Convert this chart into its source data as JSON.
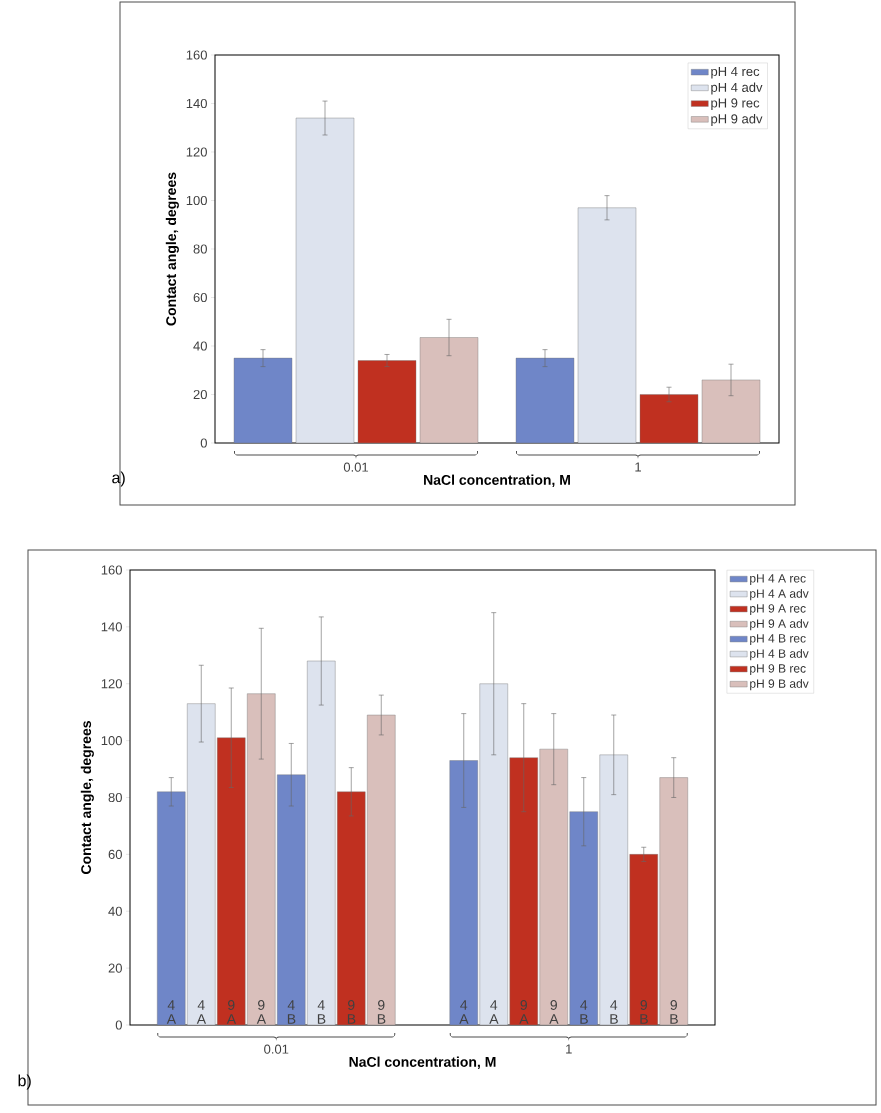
{
  "chart_data": [
    {
      "type": "bar",
      "categories": [
        "0.01",
        "1"
      ],
      "xlabel": "NaCl concentration, M",
      "ylabel": "Contact angle, degrees",
      "ylim": [
        0,
        160
      ],
      "yticks": [
        0,
        20,
        40,
        60,
        80,
        100,
        120,
        140,
        160
      ],
      "legend": "top right",
      "annotations": [
        "a)"
      ],
      "series": [
        {
          "name": "pH 4 rec",
          "color": "#6f86c8",
          "values": [
            35,
            35
          ],
          "errors": [
            3.5,
            3.5
          ]
        },
        {
          "name": "pH 4 adv",
          "color": "#dde3ee",
          "values": [
            134,
            97
          ],
          "errors": [
            7,
            5
          ]
        },
        {
          "name": "pH 9 rec",
          "color": "#c03020",
          "values": [
            34,
            20
          ],
          "errors": [
            2.5,
            3
          ]
        },
        {
          "name": "pH 9 adv",
          "color": "#d9bfbb",
          "values": [
            43.5,
            26
          ],
          "errors": [
            7.5,
            6.5
          ]
        }
      ]
    },
    {
      "type": "bar",
      "categories": [
        "0.01",
        "1"
      ],
      "xlabel": "NaCl concentration, M",
      "ylabel": "Contact angle, degrees",
      "ylim": [
        0,
        160
      ],
      "yticks": [
        0,
        20,
        40,
        60,
        80,
        100,
        120,
        140,
        160
      ],
      "legend": "right",
      "annotations": [
        "b)",
        "4 A",
        "4 A",
        "9 A",
        "9 A",
        "4 B",
        "4 B",
        "9 B",
        "9 B",
        "4 A",
        "4 A",
        "9 A",
        "9 A",
        "4 B",
        "4 B",
        "9 B",
        "9 B"
      ],
      "series": [
        {
          "name": "pH 4 A rec",
          "color": "#6f86c8",
          "values": [
            82,
            93
          ],
          "errors": [
            5,
            16.5
          ]
        },
        {
          "name": "pH 4 A adv",
          "color": "#dde3ee",
          "values": [
            113,
            120
          ],
          "errors": [
            13.5,
            25
          ]
        },
        {
          "name": "pH 9 A rec",
          "color": "#c03020",
          "values": [
            101,
            94
          ],
          "errors": [
            17.5,
            19
          ]
        },
        {
          "name": "pH 9 A adv",
          "color": "#d9bfbb",
          "values": [
            116.5,
            97
          ],
          "errors": [
            23,
            12.5
          ]
        },
        {
          "name": "pH 4 B rec",
          "color": "#6f86c8",
          "values": [
            88,
            75
          ],
          "errors": [
            11,
            12
          ]
        },
        {
          "name": "pH 4 B adv",
          "color": "#dde3ee",
          "values": [
            128,
            95
          ],
          "errors": [
            15.5,
            14
          ]
        },
        {
          "name": "pH 9 B rec",
          "color": "#c03020",
          "values": [
            82,
            60
          ],
          "errors": [
            8.5,
            2.5
          ]
        },
        {
          "name": "pH 9 B adv",
          "color": "#d9bfbb",
          "values": [
            109,
            87
          ],
          "errors": [
            7,
            7
          ]
        }
      ]
    }
  ]
}
